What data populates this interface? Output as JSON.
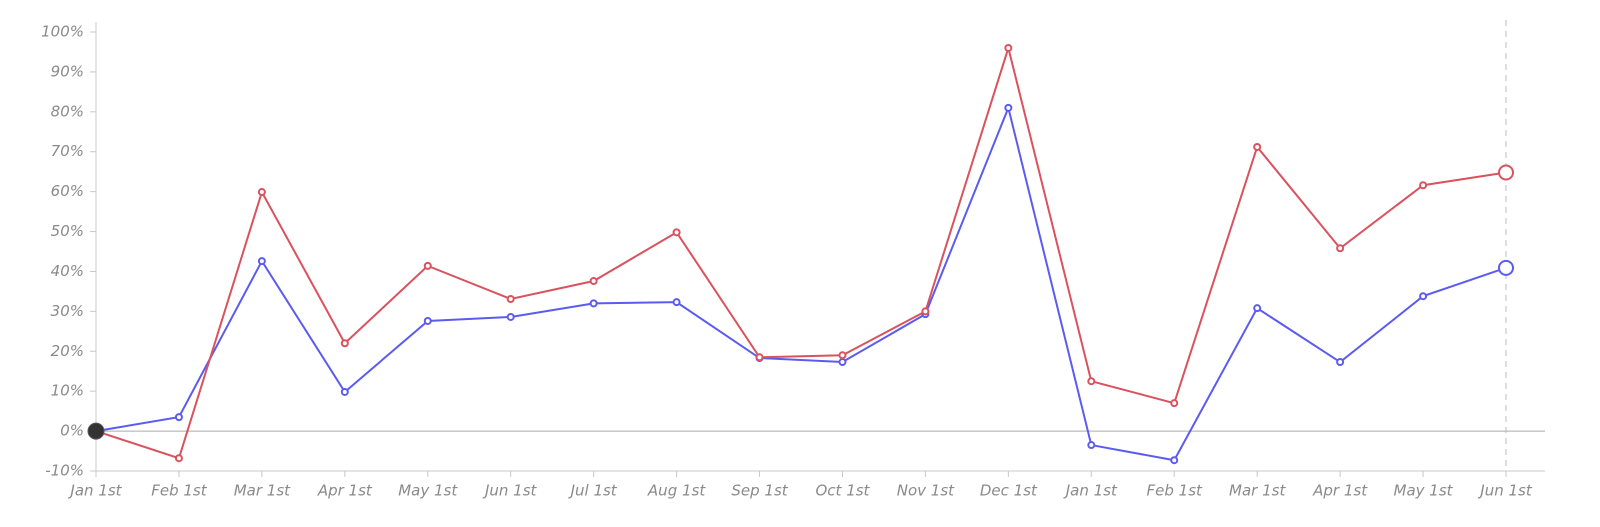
{
  "chart_data": {
    "type": "line",
    "categories": [
      "Jan 1st",
      "Feb 1st",
      "Mar 1st",
      "Apr 1st",
      "May 1st",
      "Jun 1st",
      "Jul 1st",
      "Aug 1st",
      "Sep 1st",
      "Oct 1st",
      "Nov 1st",
      "Dec 1st",
      "Jan 1st",
      "Feb 1st",
      "Mar 1st",
      "Apr 1st",
      "May 1st",
      "Jun 1st"
    ],
    "series": [
      {
        "color": "#5b5bf0",
        "values": [
          0,
          3.5,
          42.6,
          9.8,
          27.6,
          28.6,
          32,
          32.3,
          18.3,
          17.3,
          29.3,
          81,
          -3.5,
          -7.3,
          30.8,
          17.3,
          33.8,
          40.9
        ]
      },
      {
        "color": "#d9525e",
        "values": [
          0,
          -6.8,
          59.9,
          22,
          41.4,
          33.1,
          37.6,
          49.8,
          18.5,
          19,
          30,
          96,
          12.5,
          7,
          71.2,
          45.8,
          61.6,
          64.8
        ]
      }
    ],
    "ylim": [
      -10,
      100
    ],
    "yticks": [
      {
        "value": -10,
        "label": "-10%"
      },
      {
        "value": 0,
        "label": "0%"
      },
      {
        "value": 10,
        "label": "10%"
      },
      {
        "value": 20,
        "label": "20%"
      },
      {
        "value": 30,
        "label": "30%"
      },
      {
        "value": 40,
        "label": "40%"
      },
      {
        "value": 50,
        "label": "50%"
      },
      {
        "value": 60,
        "label": "60%"
      },
      {
        "value": 70,
        "label": "70%"
      },
      {
        "value": 80,
        "label": "80%"
      },
      {
        "value": 90,
        "label": "90%"
      },
      {
        "value": 100,
        "label": "100%"
      }
    ],
    "grid": false
  }
}
